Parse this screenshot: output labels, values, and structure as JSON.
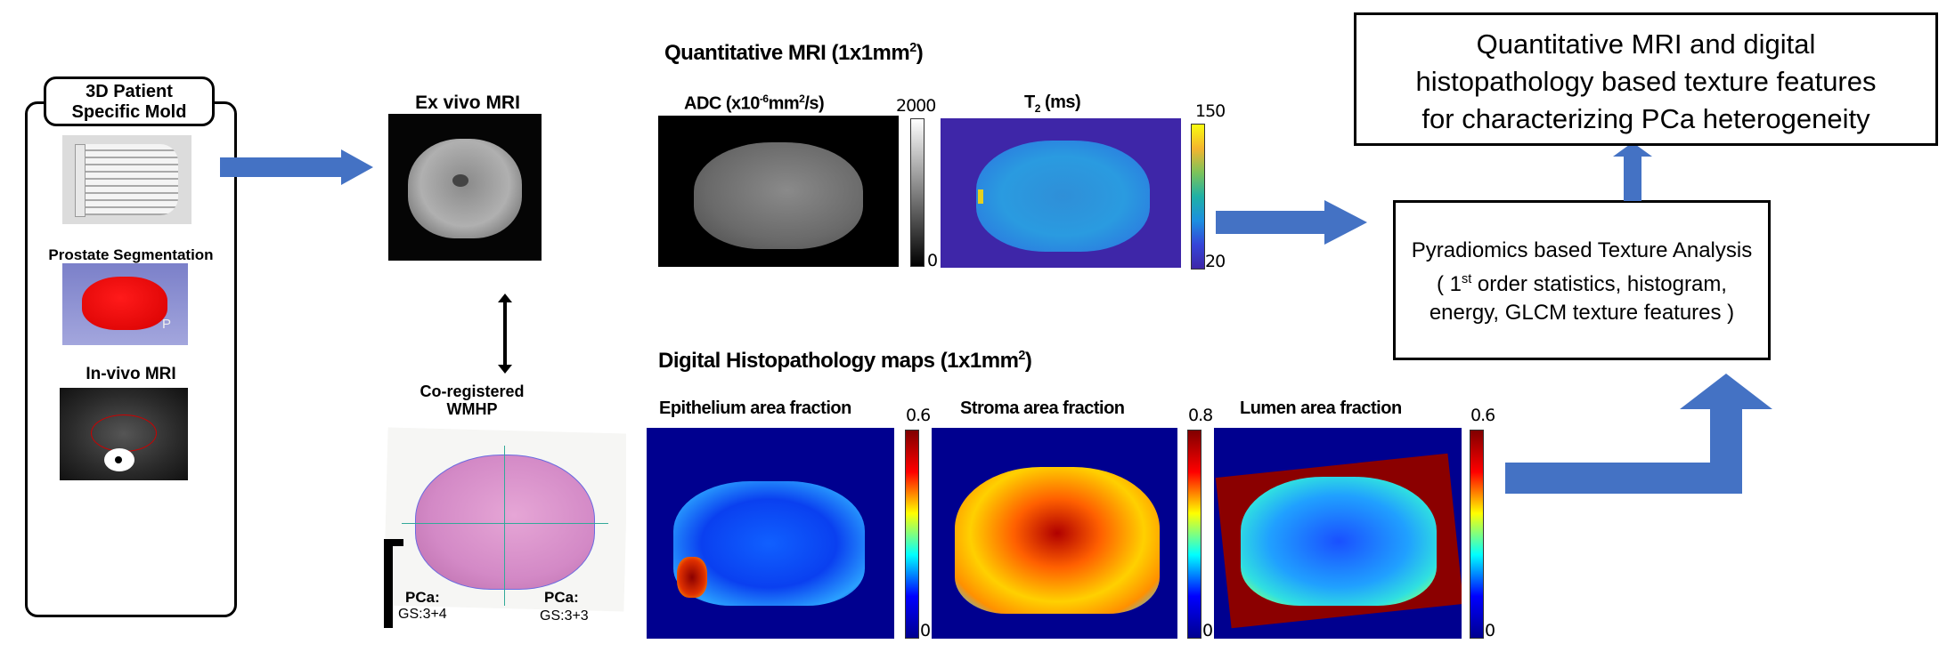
{
  "left_panel": {
    "title_line1": "3D Patient",
    "title_line2": "Specific Mold",
    "segmentation_label": "Prostate Segmentation",
    "segmentation_marker": "P",
    "invivo_label": "In-vivo MRI"
  },
  "exvivo": {
    "label": "Ex vivo MRI",
    "wmhp_label_line1": "Co-registered",
    "wmhp_label_line2": "WMHP",
    "wmhp_annotations": {
      "pca1": "PCa:",
      "gs1": "GS:3+4",
      "pca2": "PCa:",
      "gs2": "GS:3+3"
    }
  },
  "quantitative_mri": {
    "title": "Quantitative MRI (1x1mm",
    "title_sup": "2",
    "title_end": ")",
    "adc": {
      "label_pre": "ADC (x10",
      "label_sup1": "-6",
      "label_mid": "mm",
      "label_sup2": "2",
      "label_end": "/s)",
      "max": "2000",
      "min": "0"
    },
    "t2": {
      "label_pre": "T",
      "label_sub": "2",
      "label_end": " (ms)",
      "max": "150",
      "min": "20"
    }
  },
  "histopathology": {
    "title": "Digital  Histopathology maps (1x1mm",
    "title_sup": "2",
    "title_end": ")",
    "maps": [
      {
        "label": "Epithelium area fraction",
        "max": "0.6",
        "min": "0"
      },
      {
        "label": "Stroma area fraction",
        "max": "0.8",
        "min": "0"
      },
      {
        "label": "Lumen area fraction",
        "max": "0.6",
        "min": "0"
      }
    ]
  },
  "analysis_box": {
    "line1": "Pyradiomics based Texture Analysis",
    "line2_pre": "( 1",
    "line2_sup": "st",
    "line2_post": " order statistics, histogram,",
    "line3": "energy, GLCM texture features )"
  },
  "result_box": {
    "line1": "Quantitative MRI and digital",
    "line2": "histopathology based texture features",
    "line3": "for characterizing PCa heterogeneity"
  },
  "colors": {
    "arrow": "#4472C4",
    "parula_bg": "#3E26A8",
    "jet_bg": "#00008F"
  }
}
